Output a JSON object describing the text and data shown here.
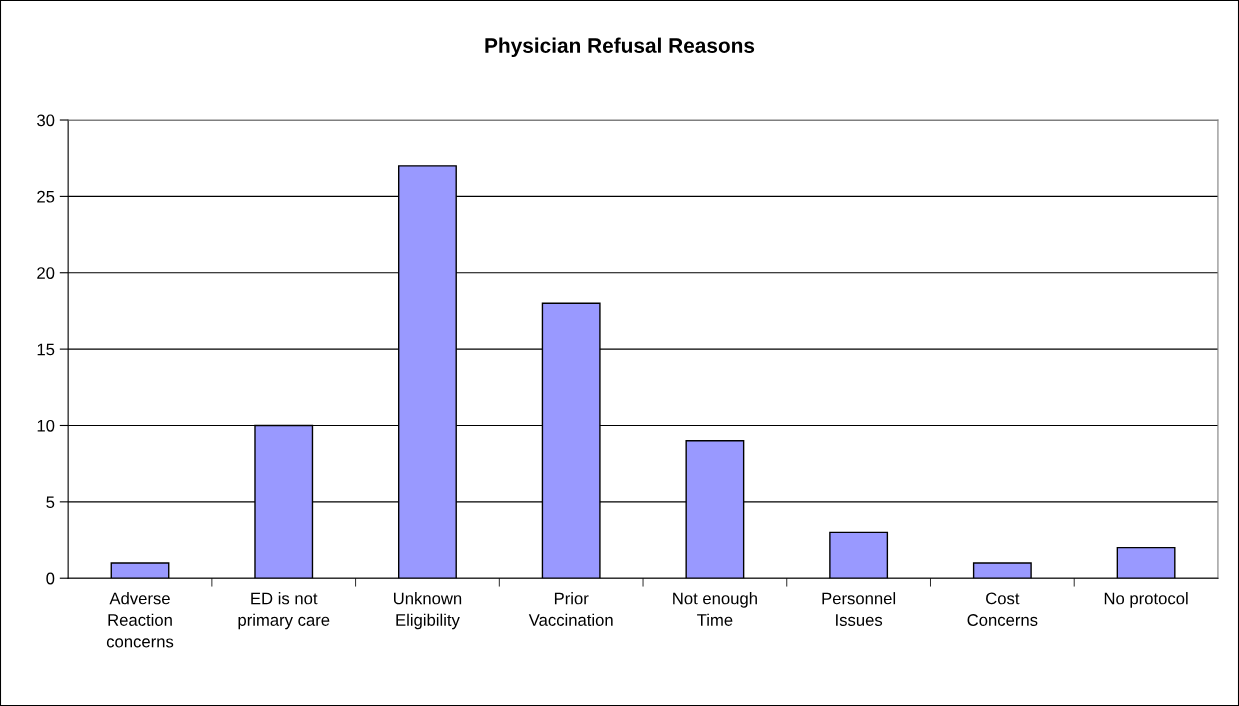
{
  "chart_data": {
    "type": "bar",
    "title": "Physician Refusal Reasons",
    "categories": [
      "Adverse\nReaction\nconcerns",
      "ED is not\nprimary care",
      "Unknown\nEligibility",
      "Prior\nVaccination",
      "Not enough\nTime",
      "Personnel\nIssues",
      "Cost\nConcerns",
      "No protocol"
    ],
    "values": [
      1,
      10,
      27,
      18,
      9,
      3,
      1,
      2
    ],
    "color": "#9999ff",
    "ylim": [
      0,
      30
    ],
    "yticks": [
      0,
      5,
      10,
      15,
      20,
      25,
      30
    ],
    "grid": "y",
    "legend": false
  }
}
